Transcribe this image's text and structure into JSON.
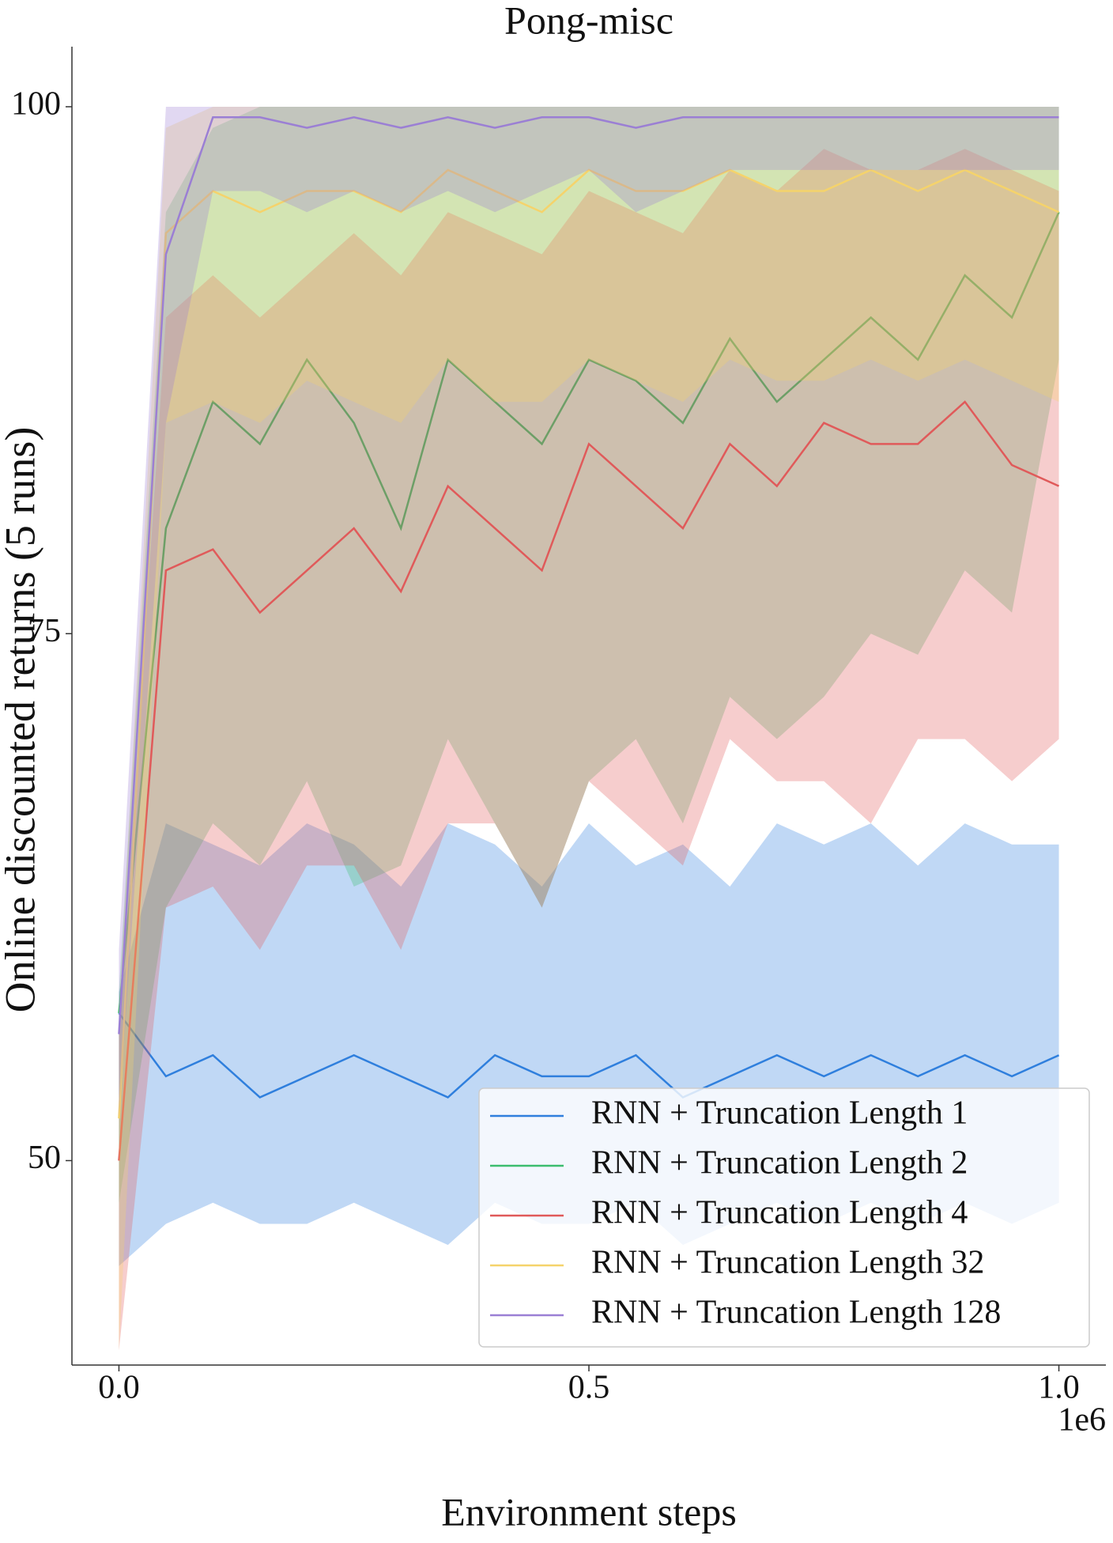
{
  "chart_data": {
    "type": "line",
    "title": "Pong-misc",
    "x_label": "Environment steps",
    "y_label": "Online discounted returns (5 runs)",
    "x_offset_label": "1e6",
    "x": [
      0,
      50000,
      100000,
      150000,
      200000,
      250000,
      300000,
      350000,
      400000,
      450000,
      500000,
      550000,
      600000,
      650000,
      700000,
      750000,
      800000,
      850000,
      900000,
      950000,
      1000000
    ],
    "xlim": [
      -50000,
      1050000
    ],
    "xticks": [
      {
        "value": 0,
        "label": "0.0"
      },
      {
        "value": 500000,
        "label": "0.5"
      },
      {
        "value": 1000000,
        "label": "1.0"
      }
    ],
    "ylim": [
      40.3,
      102.85
    ],
    "yticks": [
      50,
      75,
      100
    ],
    "grid": false,
    "legend": "lower right",
    "series": [
      {
        "name": "RNN + Truncation Length 1",
        "color": "#2f7fdd",
        "values": [
          57,
          54,
          55,
          53,
          54,
          55,
          54,
          53,
          55,
          54,
          54,
          55,
          53,
          54,
          55,
          54,
          55,
          54,
          55,
          54,
          55
        ],
        "lower": [
          45,
          47,
          48,
          47,
          47,
          48,
          47,
          46,
          48,
          47,
          47,
          48,
          46,
          47,
          48,
          47,
          48,
          47,
          48,
          47,
          48
        ],
        "upper": [
          58,
          66,
          65,
          64,
          66,
          65,
          63,
          66,
          65,
          63,
          66,
          64,
          65,
          63,
          66,
          65,
          66,
          64,
          66,
          65,
          65
        ]
      },
      {
        "name": "RNN + Truncation Length 2",
        "color": "#3cbd6e",
        "values": [
          57,
          80,
          86,
          84,
          88,
          85,
          80,
          88,
          86,
          84,
          88,
          87,
          85,
          89,
          86,
          88,
          90,
          88,
          92,
          90,
          95
        ],
        "lower": [
          48,
          62,
          66,
          64,
          68,
          63,
          64,
          70,
          66,
          62,
          68,
          70,
          66,
          72,
          70,
          72,
          75,
          74,
          78,
          76,
          88
        ],
        "upper": [
          58,
          95,
          99,
          100,
          100,
          100,
          100,
          100,
          100,
          100,
          100,
          100,
          100,
          100,
          100,
          100,
          100,
          100,
          100,
          100,
          100
        ]
      },
      {
        "name": "RNN + Truncation Length 4",
        "color": "#e05a5a",
        "values": [
          50,
          78,
          79,
          76,
          78,
          80,
          77,
          82,
          80,
          78,
          84,
          82,
          80,
          84,
          82,
          85,
          84,
          84,
          86,
          83,
          82
        ],
        "lower": [
          41,
          62,
          63,
          60,
          64,
          64,
          60,
          66,
          66,
          62,
          68,
          66,
          64,
          70,
          68,
          68,
          66,
          70,
          70,
          68,
          70
        ],
        "upper": [
          56,
          90,
          92,
          90,
          92,
          94,
          92,
          95,
          94,
          93,
          96,
          95,
          94,
          97,
          96,
          98,
          97,
          97,
          98,
          97,
          96
        ]
      },
      {
        "name": "RNN + Truncation Length 32",
        "color": "#f5d36b",
        "values": [
          52,
          94,
          96,
          95,
          96,
          96,
          95,
          97,
          96,
          95,
          97,
          96,
          96,
          97,
          96,
          96,
          97,
          96,
          97,
          96,
          95
        ],
        "lower": [
          41,
          85,
          86,
          85,
          87,
          86,
          85,
          88,
          86,
          86,
          88,
          87,
          86,
          88,
          87,
          87,
          88,
          87,
          88,
          87,
          86
        ],
        "upper": [
          57,
          99,
          100,
          100,
          100,
          100,
          100,
          100,
          100,
          100,
          100,
          100,
          100,
          100,
          100,
          100,
          100,
          100,
          100,
          100,
          100
        ]
      },
      {
        "name": "RNN + Truncation Length 128",
        "color": "#9b7fd4",
        "values": [
          56,
          93,
          99.5,
          99.5,
          99,
          99.5,
          99,
          99.5,
          99,
          99.5,
          99.5,
          99,
          99.5,
          99.5,
          99.5,
          99.5,
          99.5,
          99.5,
          99.5,
          99.5,
          99.5
        ],
        "lower": [
          52,
          85,
          96,
          96,
          95,
          96,
          95,
          96,
          95,
          96,
          97,
          95,
          96,
          97,
          97,
          97,
          97,
          97,
          97,
          97,
          97
        ],
        "upper": [
          60,
          100,
          100,
          100,
          100,
          100,
          100,
          100,
          100,
          100,
          100,
          100,
          100,
          100,
          100,
          100,
          100,
          100,
          100,
          100,
          100
        ]
      }
    ]
  }
}
